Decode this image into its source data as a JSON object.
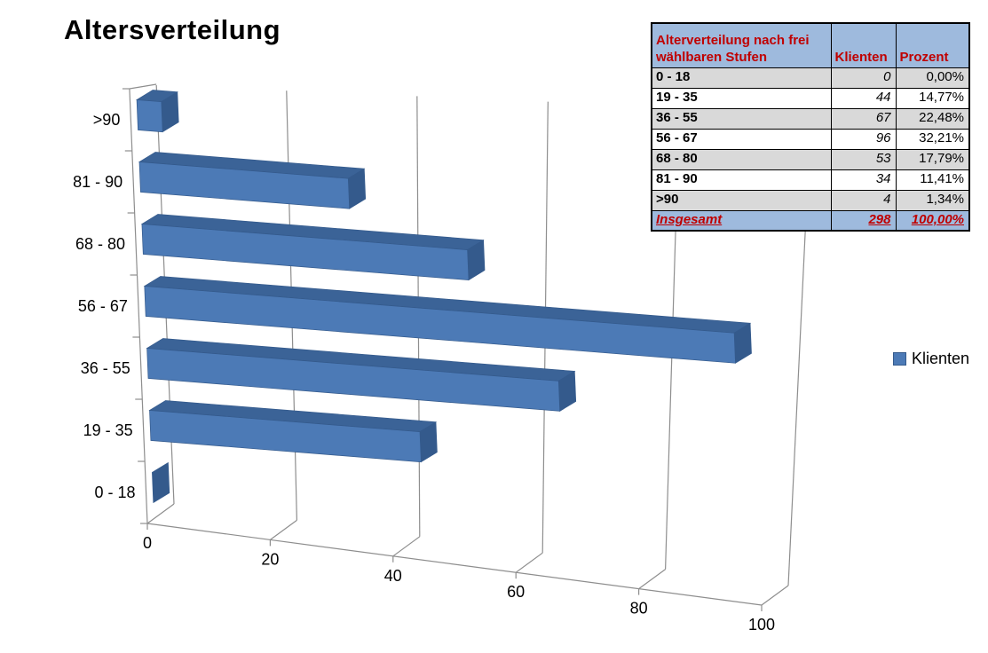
{
  "title": "Altersverteilung",
  "legend": {
    "label": "Klienten"
  },
  "table": {
    "header": {
      "label": "Alterverteilung nach frei wählbaren Stufen",
      "klienten": "Klienten",
      "prozent": "Prozent"
    },
    "rows": [
      {
        "label": "0 - 18",
        "klienten": "0",
        "prozent": "0,00%"
      },
      {
        "label": "19 - 35",
        "klienten": "44",
        "prozent": "14,77%"
      },
      {
        "label": "36 - 55",
        "klienten": "67",
        "prozent": "22,48%"
      },
      {
        "label": "56 - 67",
        "klienten": "96",
        "prozent": "32,21%"
      },
      {
        "label": "68 - 80",
        "klienten": "53",
        "prozent": "17,79%"
      },
      {
        "label": "81 - 90",
        "klienten": "34",
        "prozent": "11,41%"
      },
      {
        "label": ">90",
        "klienten": "4",
        "prozent": "1,34%"
      }
    ],
    "footer": {
      "label": "Insgesamt",
      "klienten": "298",
      "prozent": "100,00%"
    }
  },
  "chart_data": {
    "type": "bar",
    "orientation": "horizontal",
    "style": "3d",
    "title": "Altersverteilung",
    "categories": [
      "0 - 18",
      "19 - 35",
      "36 - 55",
      "56 - 67",
      "68 - 80",
      "81 - 90",
      ">90"
    ],
    "categories_order": "bottom-to-top",
    "series": [
      {
        "name": "Klienten",
        "values": [
          0,
          44,
          67,
          96,
          53,
          34,
          4
        ]
      }
    ],
    "x_ticks": [
      0,
      20,
      40,
      60,
      80,
      100
    ],
    "xlim": [
      0,
      100
    ],
    "grid": true,
    "legend_position": "right"
  },
  "colors": {
    "title_color": "#000000",
    "axis_text": "#000000",
    "gridline": "#8E8E8E",
    "bar_front": "#4C7AB6",
    "bar_top": "#3B6397",
    "bar_side": "#345A8C",
    "table_header_bg": "#9EBADD",
    "table_row_alt_bg": "#D9D9D9",
    "table_red": "#C00000",
    "table_border": "#000000"
  }
}
